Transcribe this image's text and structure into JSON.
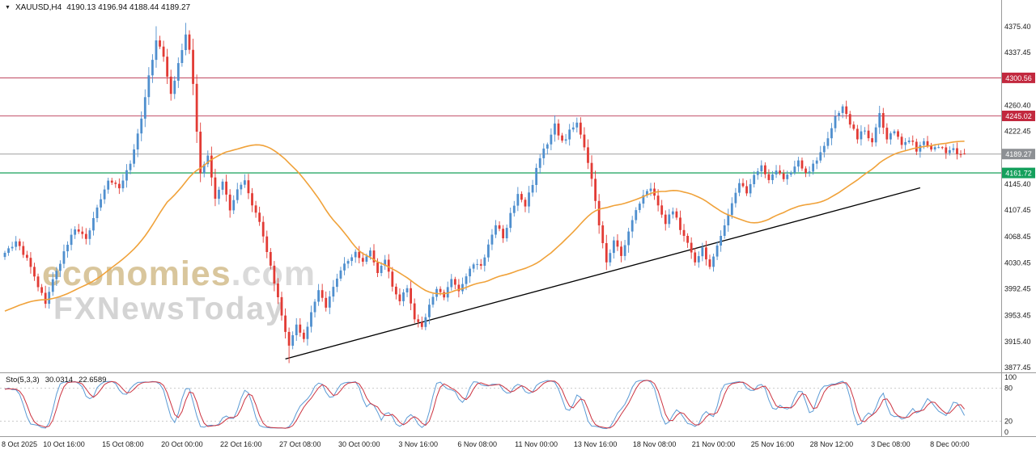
{
  "header": {
    "dropdown_icon": "▼",
    "symbol_period": "XAUUSD,H4",
    "ohlc_line": "4190.13 4196.94 4188.44 4189.27"
  },
  "watermark": {
    "brand_bold": "economies",
    "brand_suffix": ".com",
    "subtitle": "FXNewsToday"
  },
  "indicator_panel": {
    "label": "Sto(5,3,3)",
    "value_main": "30.0314",
    "value_signal": "22.6589",
    "axis_labels": [
      "100",
      "80",
      "20",
      "0"
    ]
  },
  "x_axis": {
    "labels": [
      "8 Oct 2025",
      "10 Oct 16:00",
      "15 Oct 08:00",
      "20 Oct 00:00",
      "22 Oct 16:00",
      "27 Oct 08:00",
      "30 Oct 00:00",
      "3 Nov 16:00",
      "6 Nov 08:00",
      "11 Nov 00:00",
      "13 Nov 16:00",
      "18 Nov 08:00",
      "21 Nov 00:00",
      "25 Nov 16:00",
      "28 Nov 12:00",
      "3 Dec 08:00",
      "8 Dec 00:00"
    ],
    "label_step": 16
  },
  "chart_data": {
    "type": "candlestick",
    "symbol": "XAUUSD",
    "timeframe": "H4",
    "title": "XAUUSD H4 candlestick chart with SMA, ascending trendline and Stochastic(5,3,3)",
    "candle_count": 261,
    "last_candle": {
      "open": 4190.13,
      "high": 4196.94,
      "low": 4188.44,
      "close": 4189.27
    },
    "y_ticks": [
      4375.4,
      4337.45,
      4260.4,
      4222.45,
      4145.4,
      4107.45,
      4068.45,
      4030.45,
      3992.45,
      3953.45,
      3915.4,
      3877.45
    ],
    "price_lines": [
      {
        "price": 4300.56,
        "label": "4300.56",
        "line_color": "#c4556d",
        "badge_color": "#c2283e",
        "role": "resistance"
      },
      {
        "price": 4245.02,
        "label": "4245.02",
        "line_color": "#c4556d",
        "badge_color": "#c2283e",
        "role": "resistance"
      },
      {
        "price": 4189.27,
        "label": "4189.27",
        "line_color": "#aaaaaa",
        "badge_color": "#8d9094",
        "role": "current-price"
      },
      {
        "price": 4161.72,
        "label": "4161.72",
        "line_color": "#2aa968",
        "badge_color": "#14a05c",
        "role": "support"
      }
    ],
    "trendline": {
      "from_index": 76,
      "from_price": 3890,
      "to_index": 248,
      "to_price": 4140
    },
    "ma": {
      "type": "SMA",
      "window": 45,
      "seed_price": 3958
    },
    "stochastic": {
      "k_period": 5,
      "slowing": 3,
      "d_period": 3,
      "level_lines": [
        80,
        20
      ],
      "range": [
        0,
        100
      ]
    },
    "close_waypoints": [
      [
        0,
        4045
      ],
      [
        3,
        4062
      ],
      [
        6,
        4035
      ],
      [
        9,
        3995
      ],
      [
        11,
        3972
      ],
      [
        13,
        4005
      ],
      [
        16,
        4045
      ],
      [
        19,
        4080
      ],
      [
        22,
        4066
      ],
      [
        25,
        4110
      ],
      [
        28,
        4150
      ],
      [
        31,
        4140
      ],
      [
        34,
        4178
      ],
      [
        37,
        4240
      ],
      [
        39,
        4302
      ],
      [
        41,
        4356
      ],
      [
        43,
        4330
      ],
      [
        45,
        4276
      ],
      [
        47,
        4322
      ],
      [
        49,
        4366
      ],
      [
        50,
        4342
      ],
      [
        51,
        4292
      ],
      [
        52,
        4222
      ],
      [
        53,
        4162
      ],
      [
        55,
        4186
      ],
      [
        57,
        4122
      ],
      [
        59,
        4152
      ],
      [
        61,
        4106
      ],
      [
        63,
        4136
      ],
      [
        65,
        4152
      ],
      [
        67,
        4116
      ],
      [
        69,
        4092
      ],
      [
        71,
        4046
      ],
      [
        73,
        4002
      ],
      [
        75,
        3952
      ],
      [
        77,
        3912
      ],
      [
        79,
        3942
      ],
      [
        81,
        3918
      ],
      [
        83,
        3958
      ],
      [
        85,
        3992
      ],
      [
        87,
        3964
      ],
      [
        89,
        3998
      ],
      [
        91,
        4022
      ],
      [
        95,
        4046
      ],
      [
        97,
        4032
      ],
      [
        99,
        4048
      ],
      [
        101,
        4016
      ],
      [
        103,
        4032
      ],
      [
        105,
        3998
      ],
      [
        107,
        3976
      ],
      [
        109,
        3992
      ],
      [
        111,
        3948
      ],
      [
        113,
        3934
      ],
      [
        115,
        3966
      ],
      [
        117,
        3992
      ],
      [
        119,
        3978
      ],
      [
        121,
        4008
      ],
      [
        123,
        3988
      ],
      [
        125,
        4012
      ],
      [
        127,
        4030
      ],
      [
        129,
        4024
      ],
      [
        131,
        4056
      ],
      [
        133,
        4086
      ],
      [
        135,
        4068
      ],
      [
        137,
        4100
      ],
      [
        139,
        4130
      ],
      [
        141,
        4114
      ],
      [
        143,
        4146
      ],
      [
        145,
        4186
      ],
      [
        147,
        4206
      ],
      [
        149,
        4232
      ],
      [
        151,
        4206
      ],
      [
        153,
        4222
      ],
      [
        155,
        4238
      ],
      [
        157,
        4196
      ],
      [
        159,
        4152
      ],
      [
        161,
        4086
      ],
      [
        163,
        4034
      ],
      [
        165,
        4062
      ],
      [
        167,
        4040
      ],
      [
        169,
        4076
      ],
      [
        171,
        4106
      ],
      [
        173,
        4128
      ],
      [
        175,
        4142
      ],
      [
        177,
        4114
      ],
      [
        179,
        4090
      ],
      [
        181,
        4108
      ],
      [
        183,
        4080
      ],
      [
        185,
        4060
      ],
      [
        187,
        4034
      ],
      [
        189,
        4050
      ],
      [
        191,
        4024
      ],
      [
        193,
        4056
      ],
      [
        195,
        4088
      ],
      [
        197,
        4118
      ],
      [
        199,
        4148
      ],
      [
        201,
        4134
      ],
      [
        203,
        4158
      ],
      [
        205,
        4172
      ],
      [
        207,
        4154
      ],
      [
        209,
        4168
      ],
      [
        211,
        4150
      ],
      [
        213,
        4164
      ],
      [
        215,
        4178
      ],
      [
        217,
        4160
      ],
      [
        219,
        4174
      ],
      [
        221,
        4190
      ],
      [
        223,
        4214
      ],
      [
        225,
        4244
      ],
      [
        227,
        4256
      ],
      [
        229,
        4234
      ],
      [
        231,
        4214
      ],
      [
        233,
        4226
      ],
      [
        235,
        4204
      ],
      [
        237,
        4246
      ],
      [
        239,
        4212
      ],
      [
        241,
        4222
      ],
      [
        243,
        4202
      ],
      [
        245,
        4212
      ],
      [
        247,
        4196
      ],
      [
        249,
        4206
      ],
      [
        251,
        4196
      ],
      [
        253,
        4202
      ],
      [
        255,
        4190
      ],
      [
        257,
        4196
      ],
      [
        259,
        4186
      ],
      [
        260,
        4189.27
      ]
    ],
    "pinned_extremes": [
      {
        "index": 41,
        "high": 4376
      },
      {
        "index": 49,
        "high": 4381
      },
      {
        "index": 77,
        "low": 3884
      },
      {
        "index": 149,
        "high": 4246
      },
      {
        "index": 227,
        "high": 4262
      }
    ],
    "colors": {
      "up": "#4f8fce",
      "down": "#e23b35",
      "ma": "#f0a23a",
      "trendline": "#000000",
      "sto_main": "#5b9bd5",
      "sto_signal": "#cc3340",
      "axis_text": "#1a1a1a",
      "separator": "#9a9a9a",
      "level_line": "#c9c9c9"
    }
  }
}
